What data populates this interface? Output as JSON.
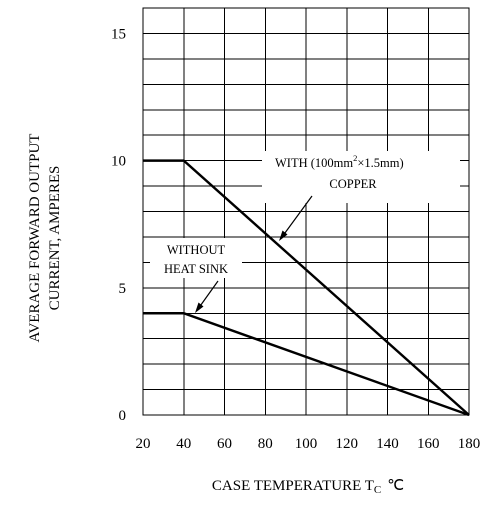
{
  "chart_data": {
    "type": "line",
    "title": "",
    "xlabel_main": "CASE TEMPERATURE T",
    "xlabel_sub": "C",
    "xlabel_unit": "℃",
    "ylabel_line1": "AVERAGE FORWARD OUTPUT",
    "ylabel_line2": "CURRENT, AMPERES",
    "xlim": [
      20,
      180
    ],
    "ylim": [
      0,
      16
    ],
    "x_ticks": [
      20,
      40,
      60,
      80,
      100,
      120,
      140,
      160,
      180
    ],
    "y_ticks": [
      0,
      5,
      10,
      15
    ],
    "x_tick_labels": [
      "20",
      "40",
      "60",
      "80",
      "100",
      "120",
      "140",
      "160",
      "180"
    ],
    "y_tick_labels": [
      "0",
      "5",
      "10",
      "15"
    ],
    "grid": true,
    "grid_x_step": 20,
    "grid_y_step": 1,
    "series": [
      {
        "name_line1": "WITH (100mm",
        "name_sup": "2",
        "name_line1_end": "×1.5mm)",
        "name_line2": "COPPER",
        "x": [
          20,
          40,
          180
        ],
        "y": [
          10,
          10,
          0
        ]
      },
      {
        "name_line1": "WITHOUT",
        "name_line2": "HEAT SINK",
        "x": [
          20,
          40,
          180
        ],
        "y": [
          4,
          4,
          0
        ]
      }
    ]
  }
}
